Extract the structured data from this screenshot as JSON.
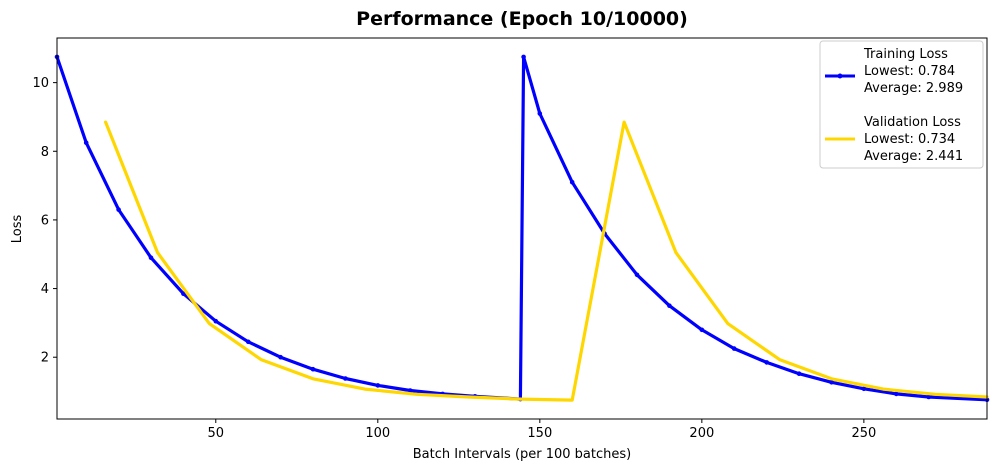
{
  "chart_data": {
    "type": "line",
    "title": "Performance (Epoch 10/10000)",
    "xlabel": "Batch Intervals (per 100 batches)",
    "ylabel": "Loss",
    "xlim": [
      1,
      288
    ],
    "ylim": [
      0.2,
      11.3
    ],
    "xticks": [
      50,
      100,
      150,
      200,
      250
    ],
    "yticks": [
      2,
      4,
      6,
      8,
      10
    ],
    "grid": false,
    "legend_position": "top-right",
    "series": [
      {
        "name": "Training Loss",
        "color": "#0000ff",
        "marker": "dot",
        "legend_lines": [
          "Training Loss",
          "Lowest: 0.784",
          "Average: 2.989"
        ],
        "x": [
          1,
          10,
          20,
          30,
          40,
          50,
          60,
          70,
          80,
          90,
          100,
          110,
          120,
          130,
          144,
          145,
          150,
          160,
          170,
          180,
          190,
          200,
          210,
          220,
          230,
          240,
          250,
          260,
          270,
          288
        ],
        "values": [
          10.75,
          8.25,
          6.3,
          4.9,
          3.85,
          3.05,
          2.45,
          2.0,
          1.65,
          1.38,
          1.18,
          1.03,
          0.93,
          0.86,
          0.78,
          10.75,
          9.1,
          7.1,
          5.6,
          4.4,
          3.5,
          2.8,
          2.25,
          1.85,
          1.52,
          1.27,
          1.08,
          0.93,
          0.84,
          0.76
        ]
      },
      {
        "name": "Validation Loss",
        "color": "#ffd700",
        "marker": "none",
        "legend_lines": [
          "Validation Loss",
          "Lowest: 0.734",
          "Average: 2.441"
        ],
        "x": [
          16,
          32,
          48,
          64,
          80,
          96,
          112,
          128,
          144,
          160,
          176,
          192,
          208,
          224,
          240,
          256,
          272,
          288
        ],
        "values": [
          8.85,
          5.05,
          2.98,
          1.93,
          1.37,
          1.07,
          0.92,
          0.84,
          0.78,
          0.75,
          8.85,
          5.05,
          2.98,
          1.93,
          1.37,
          1.07,
          0.92,
          0.84
        ]
      }
    ]
  }
}
